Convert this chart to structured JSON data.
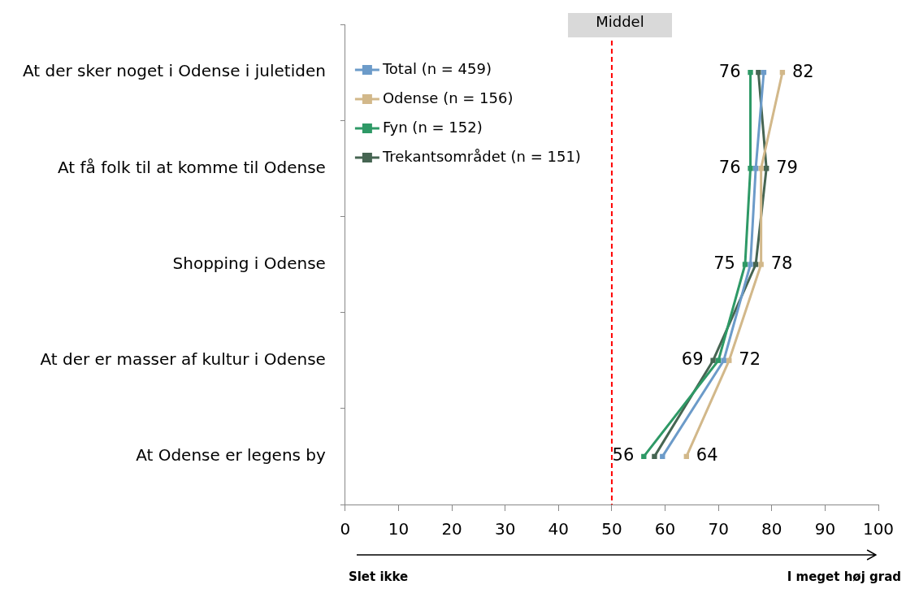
{
  "chart_data": {
    "type": "line",
    "orientation": "horizontal",
    "categories": [
      "At der sker noget i Odense i juletiden",
      "At få folk til at komme til Odense",
      "Shopping i Odense",
      "At der er masser af kultur i Odense",
      "At Odense er legens by"
    ],
    "series": [
      {
        "name": "Total (n = 459)",
        "color": "#6c9bc9",
        "values": [
          78.5,
          77,
          76,
          71,
          59.5
        ],
        "value_labels": [
          null,
          null,
          null,
          null,
          null
        ]
      },
      {
        "name": "Odense (n = 156)",
        "color": "#d2b88a",
        "values": [
          82,
          78,
          78,
          72,
          64
        ],
        "value_labels": [
          "82",
          null,
          "78",
          "72",
          "64"
        ]
      },
      {
        "name": "Fyn (n = 152)",
        "color": "#2e9966",
        "values": [
          76,
          76,
          75,
          70,
          56
        ],
        "value_labels": [
          "76",
          "76",
          "75",
          null,
          "56"
        ]
      },
      {
        "name": "Trekantsområdet (n = 151)",
        "color": "#466552",
        "values": [
          77.5,
          79,
          77,
          69,
          58
        ],
        "value_labels": [
          null,
          "79",
          null,
          "69",
          null
        ]
      }
    ],
    "xlim": [
      0,
      100
    ],
    "xticks": [
      0,
      10,
      20,
      30,
      40,
      50,
      60,
      70,
      80,
      90,
      100
    ],
    "ref_lines": [
      {
        "axis": "x",
        "value": 50,
        "label": "Middel",
        "color": "#ff0000",
        "line_style": "dashed"
      }
    ],
    "annotations": [
      "Slet ikke",
      "I meget høj grad"
    ],
    "legend": "top left",
    "grid": false,
    "marker": "square",
    "line_style": "solid"
  }
}
